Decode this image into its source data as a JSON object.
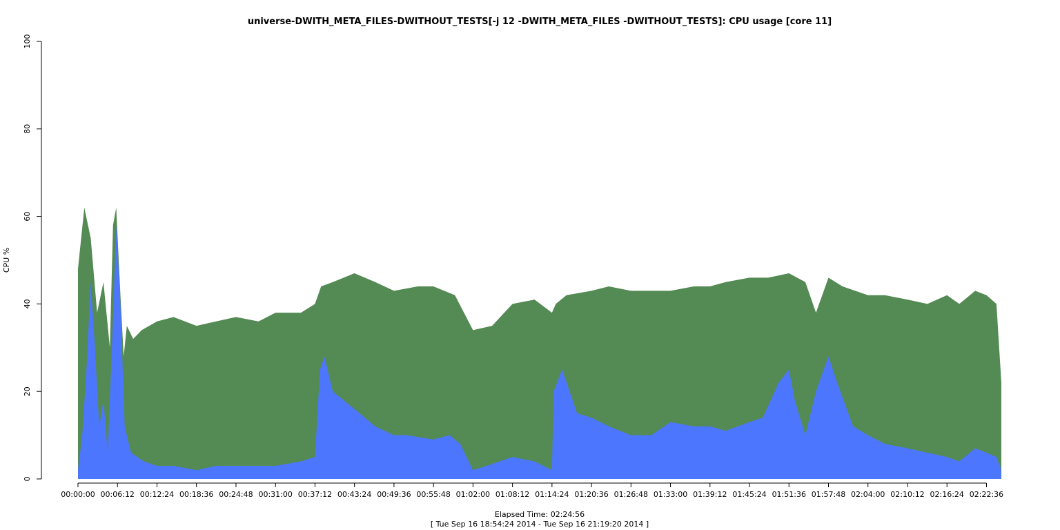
{
  "chart_data": {
    "type": "area",
    "title": "universe-DWITH_META_FILES-DWITHOUT_TESTS[-j 12 -DWITH_META_FILES -DWITHOUT_TESTS]: CPU usage [core 11]",
    "xlabel": "Elapsed Time: 02:24:56",
    "xlabel_range": "[ Tue Sep 16 18:54:24 2014 - Tue Sep 16 21:19:20 2014 ]",
    "ylabel": "CPU %",
    "ylim": [
      0,
      100
    ],
    "xlim_seconds": [
      0,
      8696
    ],
    "y_ticks": [
      0,
      20,
      40,
      60,
      80,
      100
    ],
    "x_ticks": [
      {
        "label": "00:00:00",
        "t": 0
      },
      {
        "label": "00:06:12",
        "t": 372
      },
      {
        "label": "00:12:24",
        "t": 744
      },
      {
        "label": "00:18:36",
        "t": 1116
      },
      {
        "label": "00:24:48",
        "t": 1488
      },
      {
        "label": "00:31:00",
        "t": 1860
      },
      {
        "label": "00:37:12",
        "t": 2232
      },
      {
        "label": "00:43:24",
        "t": 2604
      },
      {
        "label": "00:49:36",
        "t": 2976
      },
      {
        "label": "00:55:48",
        "t": 3348
      },
      {
        "label": "01:02:00",
        "t": 3720
      },
      {
        "label": "01:08:12",
        "t": 4092
      },
      {
        "label": "01:14:24",
        "t": 4464
      },
      {
        "label": "01:20:36",
        "t": 4836
      },
      {
        "label": "01:26:48",
        "t": 5208
      },
      {
        "label": "01:33:00",
        "t": 5580
      },
      {
        "label": "01:39:12",
        "t": 5952
      },
      {
        "label": "01:45:24",
        "t": 6324
      },
      {
        "label": "01:51:36",
        "t": 6696
      },
      {
        "label": "01:57:48",
        "t": 7068
      },
      {
        "label": "02:04:00",
        "t": 7440
      },
      {
        "label": "02:10:12",
        "t": 7812
      },
      {
        "label": "02:16:24",
        "t": 8184
      },
      {
        "label": "02:22:36",
        "t": 8556
      }
    ],
    "series": [
      {
        "color": "#548a54",
        "x_seconds": [
          0,
          60,
          120,
          180,
          240,
          300,
          330,
          360,
          400,
          430,
          460,
          520,
          600,
          744,
          900,
          1116,
          1300,
          1488,
          1700,
          1860,
          2100,
          2232,
          2290,
          2400,
          2604,
          2800,
          2976,
          3200,
          3348,
          3550,
          3720,
          3900,
          4092,
          4300,
          4464,
          4500,
          4600,
          4836,
          5000,
          5208,
          5400,
          5580,
          5800,
          5952,
          6100,
          6324,
          6500,
          6696,
          6850,
          6950,
          7068,
          7200,
          7440,
          7600,
          7812,
          8000,
          8184,
          8300,
          8450,
          8556,
          8650,
          8696
        ],
        "values": [
          48,
          62,
          55,
          38,
          45,
          30,
          58,
          62,
          42,
          28,
          35,
          32,
          34,
          36,
          37,
          35,
          36,
          37,
          36,
          38,
          38,
          40,
          44,
          45,
          47,
          45,
          43,
          44,
          44,
          42,
          34,
          35,
          40,
          41,
          38,
          40,
          42,
          43,
          44,
          43,
          43,
          43,
          44,
          44,
          45,
          46,
          46,
          47,
          45,
          38,
          46,
          44,
          42,
          42,
          41,
          40,
          42,
          40,
          43,
          42,
          40,
          22
        ]
      },
      {
        "color": "#4d76ff",
        "x_seconds": [
          0,
          40,
          80,
          120,
          160,
          200,
          240,
          280,
          320,
          360,
          400,
          440,
          500,
          620,
          744,
          900,
          1116,
          1300,
          1488,
          1700,
          1860,
          2100,
          2232,
          2280,
          2320,
          2400,
          2500,
          2604,
          2800,
          2976,
          3100,
          3348,
          3500,
          3600,
          3720,
          3850,
          4092,
          4300,
          4464,
          4480,
          4560,
          4700,
          4836,
          5000,
          5208,
          5400,
          5580,
          5800,
          5952,
          6100,
          6324,
          6450,
          6600,
          6696,
          6750,
          6850,
          6950,
          7068,
          7150,
          7300,
          7440,
          7600,
          7812,
          8000,
          8184,
          8300,
          8450,
          8556,
          8650,
          8696
        ],
        "values": [
          2,
          10,
          25,
          45,
          30,
          12,
          18,
          6,
          30,
          58,
          40,
          12,
          6,
          4,
          3,
          3,
          2,
          3,
          3,
          3,
          3,
          4,
          5,
          25,
          28,
          20,
          18,
          16,
          12,
          10,
          10,
          9,
          10,
          8,
          2,
          3,
          5,
          4,
          2,
          20,
          25,
          15,
          14,
          12,
          10,
          10,
          13,
          12,
          12,
          11,
          13,
          14,
          22,
          25,
          18,
          10,
          20,
          28,
          22,
          12,
          10,
          8,
          7,
          6,
          5,
          4,
          7,
          6,
          5,
          2
        ]
      }
    ]
  }
}
